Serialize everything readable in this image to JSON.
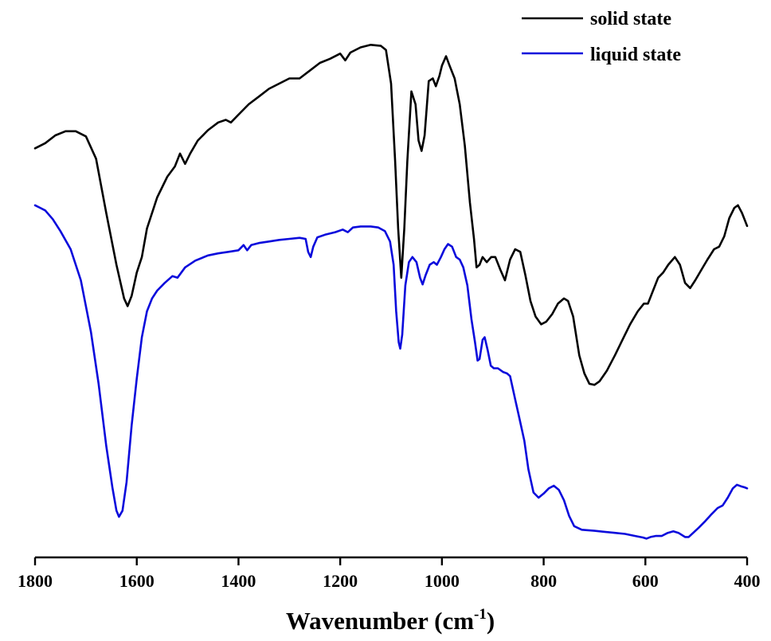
{
  "chart_data": {
    "type": "line",
    "title": "",
    "xlabel": "Wavenumber (cm",
    "xlabel_sup": "-1",
    "xlabel_end": ")",
    "ylabel": "",
    "xlim": [
      1800,
      400
    ],
    "x_reversed": true,
    "ylim": [
      0,
      100
    ],
    "x_ticks": [
      1800,
      1600,
      1400,
      1200,
      1000,
      800,
      600,
      400
    ],
    "x_tick_labels": [
      "1800",
      "1600",
      "1400",
      "1200",
      "1000",
      "800",
      "600",
      "400"
    ],
    "grid": false,
    "legend_position": "top-right",
    "series": [
      {
        "name": "solid state",
        "color": "#000000",
        "points": [
          [
            1800,
            77.5
          ],
          [
            1780,
            78.5
          ],
          [
            1760,
            80.0
          ],
          [
            1740,
            80.8
          ],
          [
            1720,
            80.8
          ],
          [
            1700,
            79.8
          ],
          [
            1680,
            75.5
          ],
          [
            1660,
            65.0
          ],
          [
            1640,
            55.0
          ],
          [
            1625,
            48.5
          ],
          [
            1618,
            47.0
          ],
          [
            1610,
            49.0
          ],
          [
            1600,
            53.5
          ],
          [
            1590,
            56.5
          ],
          [
            1580,
            62.0
          ],
          [
            1560,
            68.0
          ],
          [
            1540,
            72.0
          ],
          [
            1525,
            74.0
          ],
          [
            1515,
            76.5
          ],
          [
            1505,
            74.5
          ],
          [
            1495,
            76.5
          ],
          [
            1480,
            79.0
          ],
          [
            1460,
            81.0
          ],
          [
            1440,
            82.5
          ],
          [
            1425,
            83.0
          ],
          [
            1415,
            82.5
          ],
          [
            1400,
            84.0
          ],
          [
            1380,
            86.0
          ],
          [
            1360,
            87.5
          ],
          [
            1340,
            89.0
          ],
          [
            1320,
            90.0
          ],
          [
            1300,
            91.0
          ],
          [
            1280,
            91.0
          ],
          [
            1260,
            92.5
          ],
          [
            1240,
            94.0
          ],
          [
            1220,
            94.8
          ],
          [
            1200,
            95.8
          ],
          [
            1190,
            94.5
          ],
          [
            1180,
            96.0
          ],
          [
            1160,
            97.0
          ],
          [
            1140,
            97.5
          ],
          [
            1120,
            97.3
          ],
          [
            1110,
            96.5
          ],
          [
            1100,
            90.0
          ],
          [
            1092,
            75.0
          ],
          [
            1086,
            62.0
          ],
          [
            1080,
            52.5
          ],
          [
            1074,
            62.0
          ],
          [
            1068,
            75.0
          ],
          [
            1060,
            88.5
          ],
          [
            1052,
            86.0
          ],
          [
            1046,
            79.0
          ],
          [
            1040,
            77.0
          ],
          [
            1034,
            80.0
          ],
          [
            1026,
            90.5
          ],
          [
            1018,
            91.0
          ],
          [
            1012,
            89.5
          ],
          [
            1005,
            91.5
          ],
          [
            1000,
            93.5
          ],
          [
            992,
            95.3
          ],
          [
            985,
            93.5
          ],
          [
            975,
            91.0
          ],
          [
            965,
            86.0
          ],
          [
            955,
            78.0
          ],
          [
            945,
            67.0
          ],
          [
            937,
            60.0
          ],
          [
            932,
            54.5
          ],
          [
            926,
            55.0
          ],
          [
            920,
            56.5
          ],
          [
            912,
            55.5
          ],
          [
            903,
            56.5
          ],
          [
            895,
            56.5
          ],
          [
            885,
            54.0
          ],
          [
            876,
            52.0
          ],
          [
            866,
            56.0
          ],
          [
            856,
            58.0
          ],
          [
            846,
            57.5
          ],
          [
            836,
            53.0
          ],
          [
            826,
            48.0
          ],
          [
            816,
            45.0
          ],
          [
            805,
            43.5
          ],
          [
            795,
            44.0
          ],
          [
            783,
            45.5
          ],
          [
            772,
            47.5
          ],
          [
            760,
            48.5
          ],
          [
            752,
            48.0
          ],
          [
            742,
            45.0
          ],
          [
            730,
            37.5
          ],
          [
            720,
            34.0
          ],
          [
            710,
            32.0
          ],
          [
            700,
            31.8
          ],
          [
            690,
            32.5
          ],
          [
            676,
            34.5
          ],
          [
            660,
            37.5
          ],
          [
            645,
            40.5
          ],
          [
            630,
            43.5
          ],
          [
            615,
            46.0
          ],
          [
            603,
            47.5
          ],
          [
            595,
            47.5
          ],
          [
            585,
            50.0
          ],
          [
            575,
            52.5
          ],
          [
            565,
            53.5
          ],
          [
            555,
            55.0
          ],
          [
            542,
            56.5
          ],
          [
            532,
            55.0
          ],
          [
            522,
            51.5
          ],
          [
            512,
            50.5
          ],
          [
            502,
            52.0
          ],
          [
            490,
            54.0
          ],
          [
            478,
            56.0
          ],
          [
            465,
            58.0
          ],
          [
            455,
            58.5
          ],
          [
            445,
            60.5
          ],
          [
            435,
            64.0
          ],
          [
            425,
            66.0
          ],
          [
            418,
            66.5
          ],
          [
            410,
            65.0
          ],
          [
            400,
            62.5
          ]
        ]
      },
      {
        "name": "liquid state",
        "color": "#0a0adc",
        "points": [
          [
            1800,
            66.5
          ],
          [
            1790,
            66.0
          ],
          [
            1780,
            65.5
          ],
          [
            1765,
            63.8
          ],
          [
            1750,
            61.5
          ],
          [
            1730,
            58.0
          ],
          [
            1710,
            52.0
          ],
          [
            1690,
            42.0
          ],
          [
            1675,
            32.0
          ],
          [
            1660,
            20.0
          ],
          [
            1648,
            12.0
          ],
          [
            1640,
            7.5
          ],
          [
            1635,
            6.3
          ],
          [
            1628,
            7.5
          ],
          [
            1620,
            13.0
          ],
          [
            1610,
            24.0
          ],
          [
            1600,
            33.0
          ],
          [
            1590,
            41.0
          ],
          [
            1580,
            46.0
          ],
          [
            1570,
            48.5
          ],
          [
            1560,
            50.0
          ],
          [
            1545,
            51.5
          ],
          [
            1530,
            52.8
          ],
          [
            1520,
            52.5
          ],
          [
            1505,
            54.5
          ],
          [
            1485,
            55.8
          ],
          [
            1460,
            56.8
          ],
          [
            1440,
            57.2
          ],
          [
            1420,
            57.5
          ],
          [
            1400,
            57.8
          ],
          [
            1390,
            58.8
          ],
          [
            1383,
            57.8
          ],
          [
            1375,
            58.8
          ],
          [
            1360,
            59.2
          ],
          [
            1340,
            59.5
          ],
          [
            1320,
            59.8
          ],
          [
            1300,
            60.0
          ],
          [
            1280,
            60.2
          ],
          [
            1268,
            60.0
          ],
          [
            1263,
            57.5
          ],
          [
            1258,
            56.5
          ],
          [
            1253,
            58.5
          ],
          [
            1245,
            60.3
          ],
          [
            1230,
            60.8
          ],
          [
            1210,
            61.3
          ],
          [
            1195,
            61.8
          ],
          [
            1185,
            61.3
          ],
          [
            1175,
            62.2
          ],
          [
            1160,
            62.4
          ],
          [
            1140,
            62.4
          ],
          [
            1125,
            62.2
          ],
          [
            1112,
            61.5
          ],
          [
            1102,
            59.5
          ],
          [
            1095,
            55.0
          ],
          [
            1090,
            46.0
          ],
          [
            1085,
            40.0
          ],
          [
            1082,
            38.8
          ],
          [
            1078,
            41.5
          ],
          [
            1072,
            51.0
          ],
          [
            1065,
            55.5
          ],
          [
            1058,
            56.5
          ],
          [
            1050,
            55.5
          ],
          [
            1043,
            52.5
          ],
          [
            1038,
            51.2
          ],
          [
            1032,
            53.0
          ],
          [
            1024,
            55.0
          ],
          [
            1016,
            55.5
          ],
          [
            1010,
            55.0
          ],
          [
            1002,
            56.5
          ],
          [
            995,
            58.0
          ],
          [
            988,
            59.0
          ],
          [
            980,
            58.5
          ],
          [
            972,
            56.5
          ],
          [
            965,
            56.0
          ],
          [
            958,
            54.5
          ],
          [
            950,
            51.0
          ],
          [
            942,
            44.5
          ],
          [
            935,
            40.0
          ],
          [
            930,
            36.5
          ],
          [
            926,
            36.8
          ],
          [
            920,
            40.5
          ],
          [
            916,
            41.0
          ],
          [
            910,
            38.5
          ],
          [
            904,
            35.5
          ],
          [
            898,
            35.0
          ],
          [
            890,
            35.0
          ],
          [
            880,
            34.3
          ],
          [
            872,
            34.0
          ],
          [
            866,
            33.5
          ],
          [
            856,
            29.0
          ],
          [
            848,
            25.5
          ],
          [
            838,
            21.0
          ],
          [
            830,
            15.5
          ],
          [
            820,
            11.0
          ],
          [
            810,
            10.0
          ],
          [
            800,
            10.8
          ],
          [
            790,
            11.8
          ],
          [
            780,
            12.3
          ],
          [
            770,
            11.5
          ],
          [
            760,
            9.5
          ],
          [
            750,
            6.5
          ],
          [
            740,
            4.5
          ],
          [
            725,
            3.8
          ],
          [
            700,
            3.6
          ],
          [
            680,
            3.4
          ],
          [
            660,
            3.2
          ],
          [
            640,
            3.0
          ],
          [
            620,
            2.6
          ],
          [
            605,
            2.3
          ],
          [
            598,
            2.1
          ],
          [
            590,
            2.4
          ],
          [
            580,
            2.6
          ],
          [
            568,
            2.6
          ],
          [
            556,
            3.2
          ],
          [
            545,
            3.5
          ],
          [
            535,
            3.2
          ],
          [
            522,
            2.4
          ],
          [
            515,
            2.4
          ],
          [
            506,
            3.2
          ],
          [
            495,
            4.2
          ],
          [
            482,
            5.5
          ],
          [
            470,
            6.8
          ],
          [
            458,
            8.0
          ],
          [
            448,
            8.5
          ],
          [
            438,
            10.0
          ],
          [
            428,
            11.8
          ],
          [
            420,
            12.5
          ],
          [
            412,
            12.2
          ],
          [
            405,
            12.0
          ],
          [
            400,
            11.8
          ]
        ]
      }
    ]
  }
}
